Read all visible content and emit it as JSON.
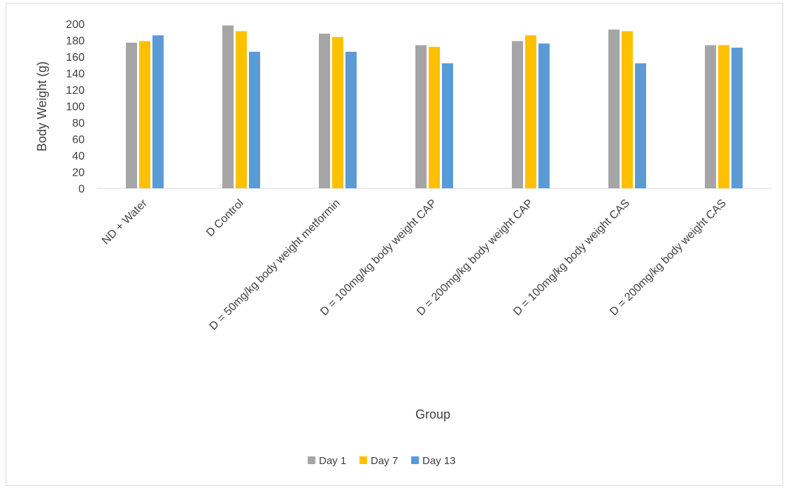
{
  "chart_data": {
    "type": "bar",
    "xlabel": "Group",
    "ylabel": "Body Weight (g)",
    "ylim": [
      0,
      200
    ],
    "yticks": [
      0,
      20,
      40,
      60,
      80,
      100,
      120,
      140,
      160,
      180,
      200
    ],
    "grid": false,
    "legend_position": "bottom",
    "categories": [
      "ND + Water",
      "D Control",
      "D = 50mg/kg body weight metformin",
      "D = 100mg/kg body weight CAP",
      "D = 200mg/kg body weight CAP",
      "D = 100mg/kg body weight CAS",
      "D = 200mg/kg body weight CAS"
    ],
    "series": [
      {
        "name": "Day 1",
        "color": "#a5a5a5",
        "values": [
          177,
          198,
          188,
          174,
          179,
          193,
          174
        ]
      },
      {
        "name": "Day 7",
        "color": "#ffc000",
        "values": [
          179,
          191,
          184,
          172,
          186,
          191,
          174
        ]
      },
      {
        "name": "Day 13",
        "color": "#5b9bd5",
        "values": [
          186,
          166,
          166,
          152,
          176,
          152,
          171
        ]
      }
    ]
  }
}
